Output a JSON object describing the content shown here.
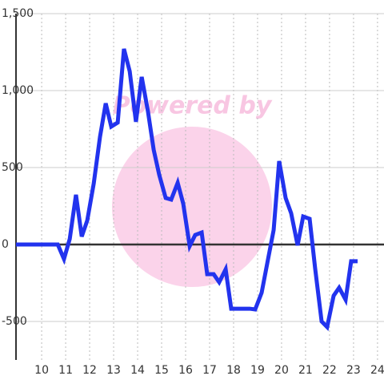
{
  "chart_data": {
    "type": "line",
    "watermark": "Powered by",
    "x": [
      8.93,
      10.67,
      10.93,
      11.17,
      11.43,
      11.67,
      11.9,
      12.17,
      12.43,
      12.67,
      12.9,
      13.17,
      13.43,
      13.67,
      13.93,
      14.17,
      14.43,
      14.67,
      14.9,
      15.17,
      15.4,
      15.67,
      15.9,
      16.17,
      16.4,
      16.67,
      16.9,
      17.17,
      17.4,
      17.67,
      17.9,
      18.17,
      18.4,
      18.67,
      18.9,
      19.17,
      19.4,
      19.67,
      19.9,
      20.17,
      20.4,
      20.67,
      20.9,
      21.17,
      21.4,
      21.67,
      21.9,
      22.17,
      22.4,
      22.67,
      22.9,
      23.17
    ],
    "series": [
      {
        "color": "#2233ee",
        "values": [
          0,
          0,
          -94,
          36,
          323,
          52,
          156,
          396,
          698,
          917,
          766,
          792,
          1271,
          1125,
          797,
          1089,
          865,
          615,
          453,
          302,
          292,
          401,
          266,
          -10,
          62,
          78,
          -193,
          -193,
          -245,
          -161,
          -417,
          -417,
          -417,
          -417,
          -422,
          -313,
          -125,
          94,
          542,
          302,
          203,
          -5,
          182,
          167,
          -156,
          -500,
          -536,
          -333,
          -281,
          -359,
          -109,
          -109
        ]
      }
    ],
    "xlim": [
      8.93,
      24.27
    ],
    "ylim": [
      -750,
      1500
    ],
    "xticks": [
      10,
      11,
      12,
      13,
      14,
      15,
      16,
      17,
      18,
      19,
      20,
      21,
      22,
      23,
      24
    ],
    "yticks": [
      {
        "value": 1500,
        "label": "1,500"
      },
      {
        "value": 1000,
        "label": "1,000"
      },
      500,
      0,
      -500
    ],
    "grid": true
  }
}
